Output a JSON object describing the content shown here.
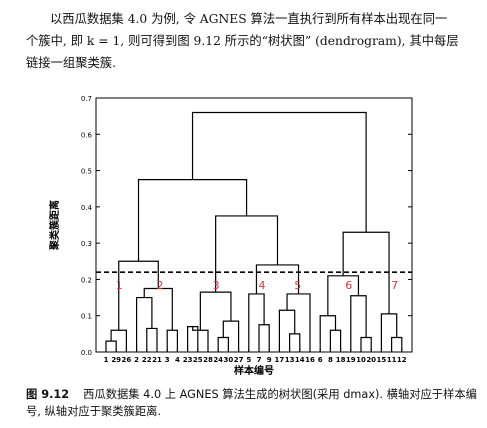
{
  "paragraph": {
    "line1": "以西瓜数据集 4.0 为例, 令 AGNES 算法一直执行到所有样本出现在同一",
    "line2": "个簇中, 即 k = 1, 则可得到图 9.12 所示的“树状图” (dendrogram), 其中每层",
    "line3": "链接一组聚类簇."
  },
  "caption": {
    "number": "图 9.12",
    "text": "西瓜数据集 4.0 上 AGNES 算法生成的树状图(采用 dmax). 横轴对应于样本编号, 纵轴对应于聚类簇距离."
  },
  "chart_data": {
    "type": "dendrogram",
    "xlabel": "样本编号",
    "ylabel": "聚类簇距离",
    "ylim": [
      0,
      0.7
    ],
    "yticks": [
      "0.0",
      "0.1",
      "0.2",
      "0.3",
      "0.4",
      "0.5",
      "0.6",
      "0.7"
    ],
    "leaves": [
      "1",
      "29",
      "26",
      "2",
      "22",
      "21",
      "3",
      "4",
      "23",
      "25",
      "28",
      "24",
      "30",
      "27",
      "5",
      "7",
      "9",
      "17",
      "13",
      "14",
      "16",
      "6",
      "8",
      "18",
      "19",
      "10",
      "20",
      "15",
      "11",
      "12"
    ],
    "cut_height": 0.22,
    "cut_line_style": "dashed",
    "clusters": [
      {
        "label": "1",
        "leaves": [
          "1",
          "29",
          "26"
        ]
      },
      {
        "label": "2",
        "leaves": [
          "2",
          "22",
          "21",
          "3",
          "4"
        ]
      },
      {
        "label": "3",
        "leaves": [
          "23",
          "25",
          "28",
          "24",
          "30",
          "27"
        ]
      },
      {
        "label": "4",
        "leaves": [
          "5",
          "7",
          "9"
        ]
      },
      {
        "label": "5",
        "leaves": [
          "17",
          "13",
          "14",
          "16"
        ]
      },
      {
        "label": "6",
        "leaves": [
          "6",
          "8",
          "18",
          "19",
          "10",
          "20"
        ]
      },
      {
        "label": "7",
        "leaves": [
          "15",
          "11",
          "12"
        ]
      }
    ],
    "cluster_label_color": "#d63a3a",
    "merges": [
      {
        "id": "m1",
        "a": "1",
        "b": "29",
        "h": 0.03
      },
      {
        "id": "m2",
        "a": "m1",
        "b": "26",
        "h": 0.06
      },
      {
        "id": "m3",
        "a": "22",
        "b": "21",
        "h": 0.065
      },
      {
        "id": "m4",
        "a": "3",
        "b": "4",
        "h": 0.06
      },
      {
        "id": "m5",
        "a": "m3",
        "b": "2",
        "h": 0.15
      },
      {
        "id": "m6",
        "a": "m5",
        "b": "m4",
        "h": 0.175
      },
      {
        "id": "m7",
        "a": "m2",
        "b": "m6",
        "h": 0.25
      },
      {
        "id": "m8",
        "a": "23",
        "b": "25",
        "h": 0.07
      },
      {
        "id": "m9",
        "a": "m8",
        "b": "28",
        "h": 0.06
      },
      {
        "id": "m10",
        "a": "24",
        "b": "30",
        "h": 0.04
      },
      {
        "id": "m11",
        "a": "27",
        "b": "m10",
        "h": 0.085
      },
      {
        "id": "m12",
        "a": "m9",
        "b": "m11",
        "h": 0.165
      },
      {
        "id": "m13",
        "a": "7",
        "b": "9",
        "h": 0.075
      },
      {
        "id": "m14",
        "a": "5",
        "b": "m13",
        "h": 0.16
      },
      {
        "id": "m15",
        "a": "13",
        "b": "14",
        "h": 0.05
      },
      {
        "id": "m16",
        "a": "17",
        "b": "m15",
        "h": 0.115
      },
      {
        "id": "m17",
        "a": "m16",
        "b": "16",
        "h": 0.16
      },
      {
        "id": "m18",
        "a": "m14",
        "b": "m17",
        "h": 0.24
      },
      {
        "id": "m19",
        "a": "m12",
        "b": "m18",
        "h": 0.375
      },
      {
        "id": "m20",
        "a": "m7",
        "b": "m19",
        "h": 0.475
      },
      {
        "id": "m21",
        "a": "8",
        "b": "18",
        "h": 0.06
      },
      {
        "id": "m22",
        "a": "m21",
        "b": "6",
        "h": 0.1
      },
      {
        "id": "m23",
        "a": "10",
        "b": "20",
        "h": 0.04
      },
      {
        "id": "m24",
        "a": "19",
        "b": "m23",
        "h": 0.155
      },
      {
        "id": "m25",
        "a": "m22",
        "b": "m24",
        "h": 0.21
      },
      {
        "id": "m26",
        "a": "11",
        "b": "12",
        "h": 0.04
      },
      {
        "id": "m27",
        "a": "15",
        "b": "m26",
        "h": 0.105
      },
      {
        "id": "m28",
        "a": "m25",
        "b": "m27",
        "h": 0.33
      },
      {
        "id": "m29",
        "a": "m20",
        "b": "m28",
        "h": 0.66
      }
    ]
  }
}
